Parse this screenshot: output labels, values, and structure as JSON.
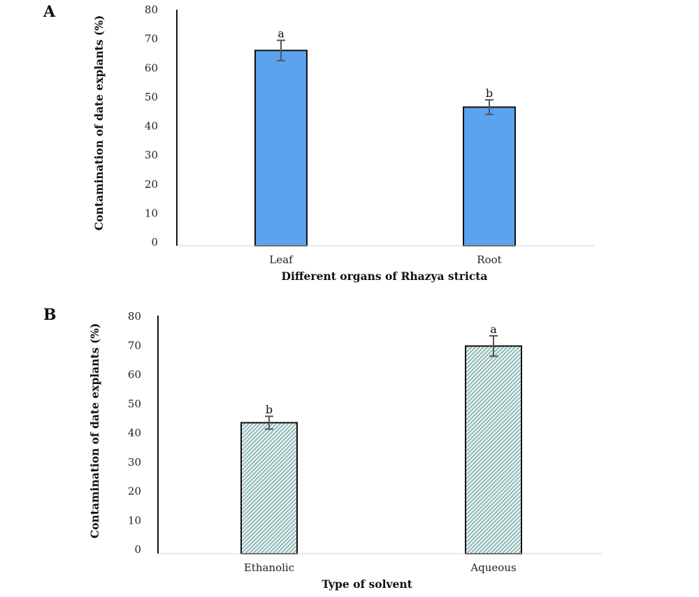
{
  "chart_data": [
    {
      "panel": "A",
      "type": "bar",
      "categories": [
        "Leaf",
        "Root"
      ],
      "values": [
        66,
        46.5
      ],
      "errors": [
        3.5,
        2.5
      ],
      "annotations": [
        "a",
        "b"
      ],
      "xlabel": "Different organs of Rhazya stricta",
      "ylabel": "Contamination of date explants (%)",
      "ylim": [
        0,
        80
      ],
      "yticks": [
        0,
        10,
        20,
        30,
        40,
        50,
        60,
        70,
        80
      ],
      "bar_fill": "solid",
      "colors": {
        "bar": "#5ba3ef",
        "bar_edge": "#111111",
        "error": "#555555"
      },
      "grid": false
    },
    {
      "panel": "B",
      "type": "bar",
      "categories": [
        "Ethanolic",
        "Aqueous"
      ],
      "values": [
        43.5,
        69.8
      ],
      "errors": [
        2.2,
        3.5
      ],
      "annotations": [
        "b",
        "a"
      ],
      "xlabel": "Type of solvent",
      "ylabel": "Contamination of date explants (%)",
      "ylim": [
        0,
        80
      ],
      "yticks": [
        0,
        10,
        20,
        30,
        40,
        50,
        60,
        70,
        80
      ],
      "bar_fill": "diagonal-hatch",
      "colors": {
        "bar": "#5f9c9a",
        "bar_bg": "#e6f0ef",
        "bar_edge": "#111111",
        "error": "#555555"
      },
      "grid": false
    }
  ]
}
